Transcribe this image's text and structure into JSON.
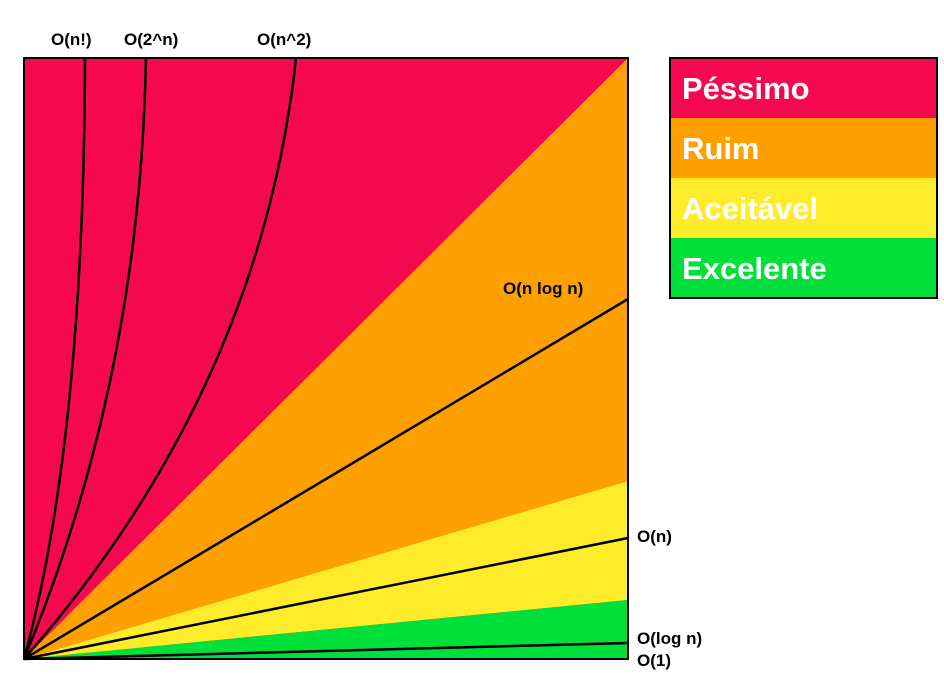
{
  "colors": {
    "pessimo": "#F5084F",
    "ruim": "#FEA100",
    "aceitavel": "#FEEB2A",
    "excelente": "#00E03A",
    "curve": "#000000",
    "border": "#000000"
  },
  "legend": [
    {
      "label": "Péssimo",
      "color": "#F5084F"
    },
    {
      "label": "Ruim",
      "color": "#FEA100"
    },
    {
      "label": "Aceitável",
      "color": "#FEEB2A"
    },
    {
      "label": "Excelente",
      "color": "#00E03A"
    }
  ],
  "curves": {
    "factorial": "O(n!)",
    "exponential": "O(2^n)",
    "quadratic": "O(n^2)",
    "linearithmic": "O(n log n)",
    "linear": "O(n)",
    "logarithmic": "O(log n)",
    "constant": "O(1)"
  }
}
